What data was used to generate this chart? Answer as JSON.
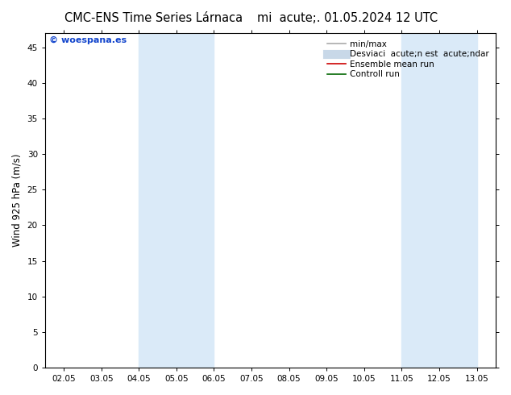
{
  "title_left": "CMC-ENS Time Series Lárnaca",
  "title_right": "mi  acute;. 01.05.2024 12 UTC",
  "ylabel": "Wind 925 hPa (m/s)",
  "watermark": "© woespana.es",
  "xlim_dates": [
    "02.05",
    "03.05",
    "04.05",
    "05.05",
    "06.05",
    "07.05",
    "08.05",
    "09.05",
    "10.05",
    "11.05",
    "12.05",
    "13.05"
  ],
  "xlim": [
    0,
    11
  ],
  "ylim": [
    0,
    47
  ],
  "yticks": [
    0,
    5,
    10,
    15,
    20,
    25,
    30,
    35,
    40,
    45
  ],
  "shaded_bands": [
    {
      "xstart": 2.0,
      "xend": 4.0
    },
    {
      "xstart": 9.0,
      "xend": 11.0
    }
  ],
  "shade_color": "#daeaf8",
  "bg_color": "#ffffff",
  "legend_entries": [
    {
      "label": "min/max",
      "color": "#aaaaaa",
      "lw": 1.2,
      "type": "line"
    },
    {
      "label": "Desviaci  acute;n est  acute;ndar",
      "color": "#c8d8e8",
      "lw": 8,
      "type": "line"
    },
    {
      "label": "Ensemble mean run",
      "color": "#cc0000",
      "lw": 1.2,
      "type": "line"
    },
    {
      "label": "Controll run",
      "color": "#006600",
      "lw": 1.2,
      "type": "line"
    }
  ],
  "title_fontsize": 10.5,
  "tick_fontsize": 7.5,
  "ylabel_fontsize": 8.5,
  "legend_fontsize": 7.5,
  "watermark_color": "#1144cc",
  "spine_color": "#000000",
  "tick_color": "#000000"
}
